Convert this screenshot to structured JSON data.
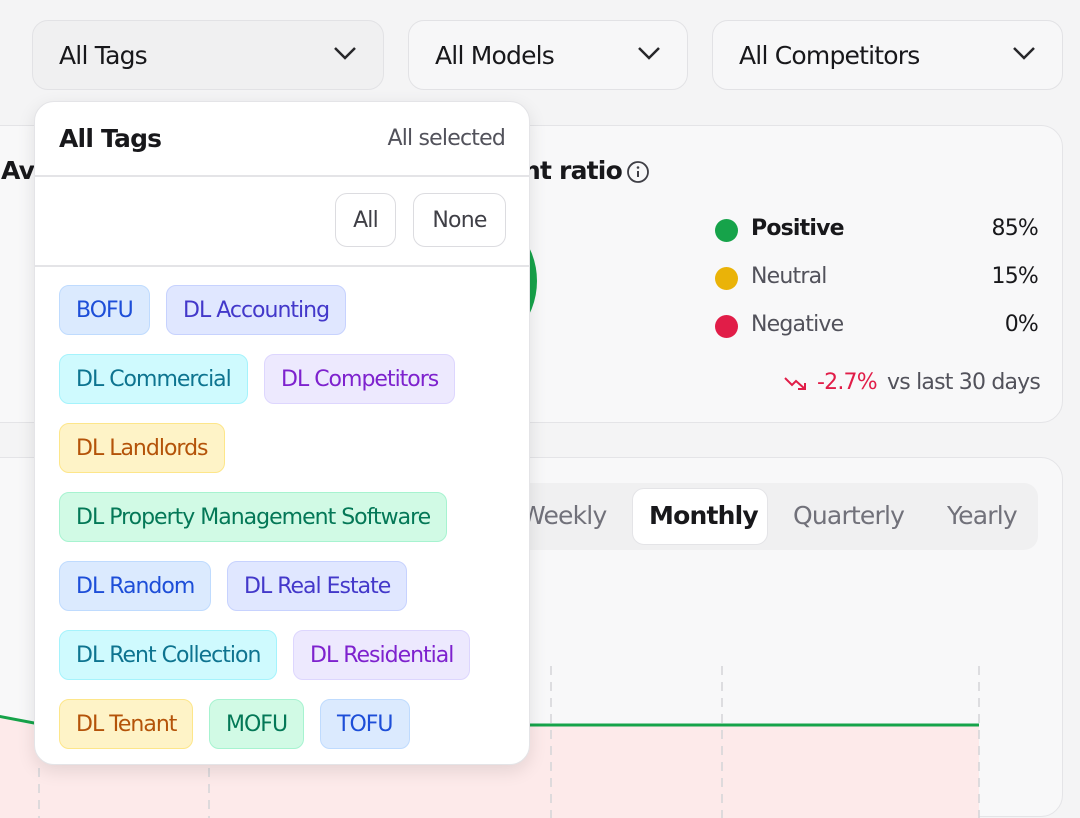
{
  "filters": [
    "All Tags",
    "All Models",
    "All Competitors"
  ],
  "dropdown": {
    "title": "All Tags",
    "status": "All selected",
    "buttons": [
      "All",
      "None"
    ],
    "tags": [
      "BOFU",
      "DL Accounting",
      "DL Commercial",
      "DL Competitors",
      "DL Landlords",
      "DL Property Management Software",
      "DL Random",
      "DL Real Estate",
      "DL Rent Collection",
      "DL Residential",
      "DL Tenant",
      "MOFU",
      "TOFU"
    ]
  },
  "left_card": {
    "title": "Av"
  },
  "sentiment": {
    "title": "nt ratio",
    "items": [
      {
        "label": "Positive",
        "value": "85%"
      },
      {
        "label": "Neutral",
        "value": "15%"
      },
      {
        "label": "Negative",
        "value": "0%"
      }
    ],
    "change": "-2.7%",
    "change_note": "vs last 30 days"
  },
  "periods": [
    "Weekly",
    "Monthly",
    "Quarterly",
    "Yearly"
  ]
}
